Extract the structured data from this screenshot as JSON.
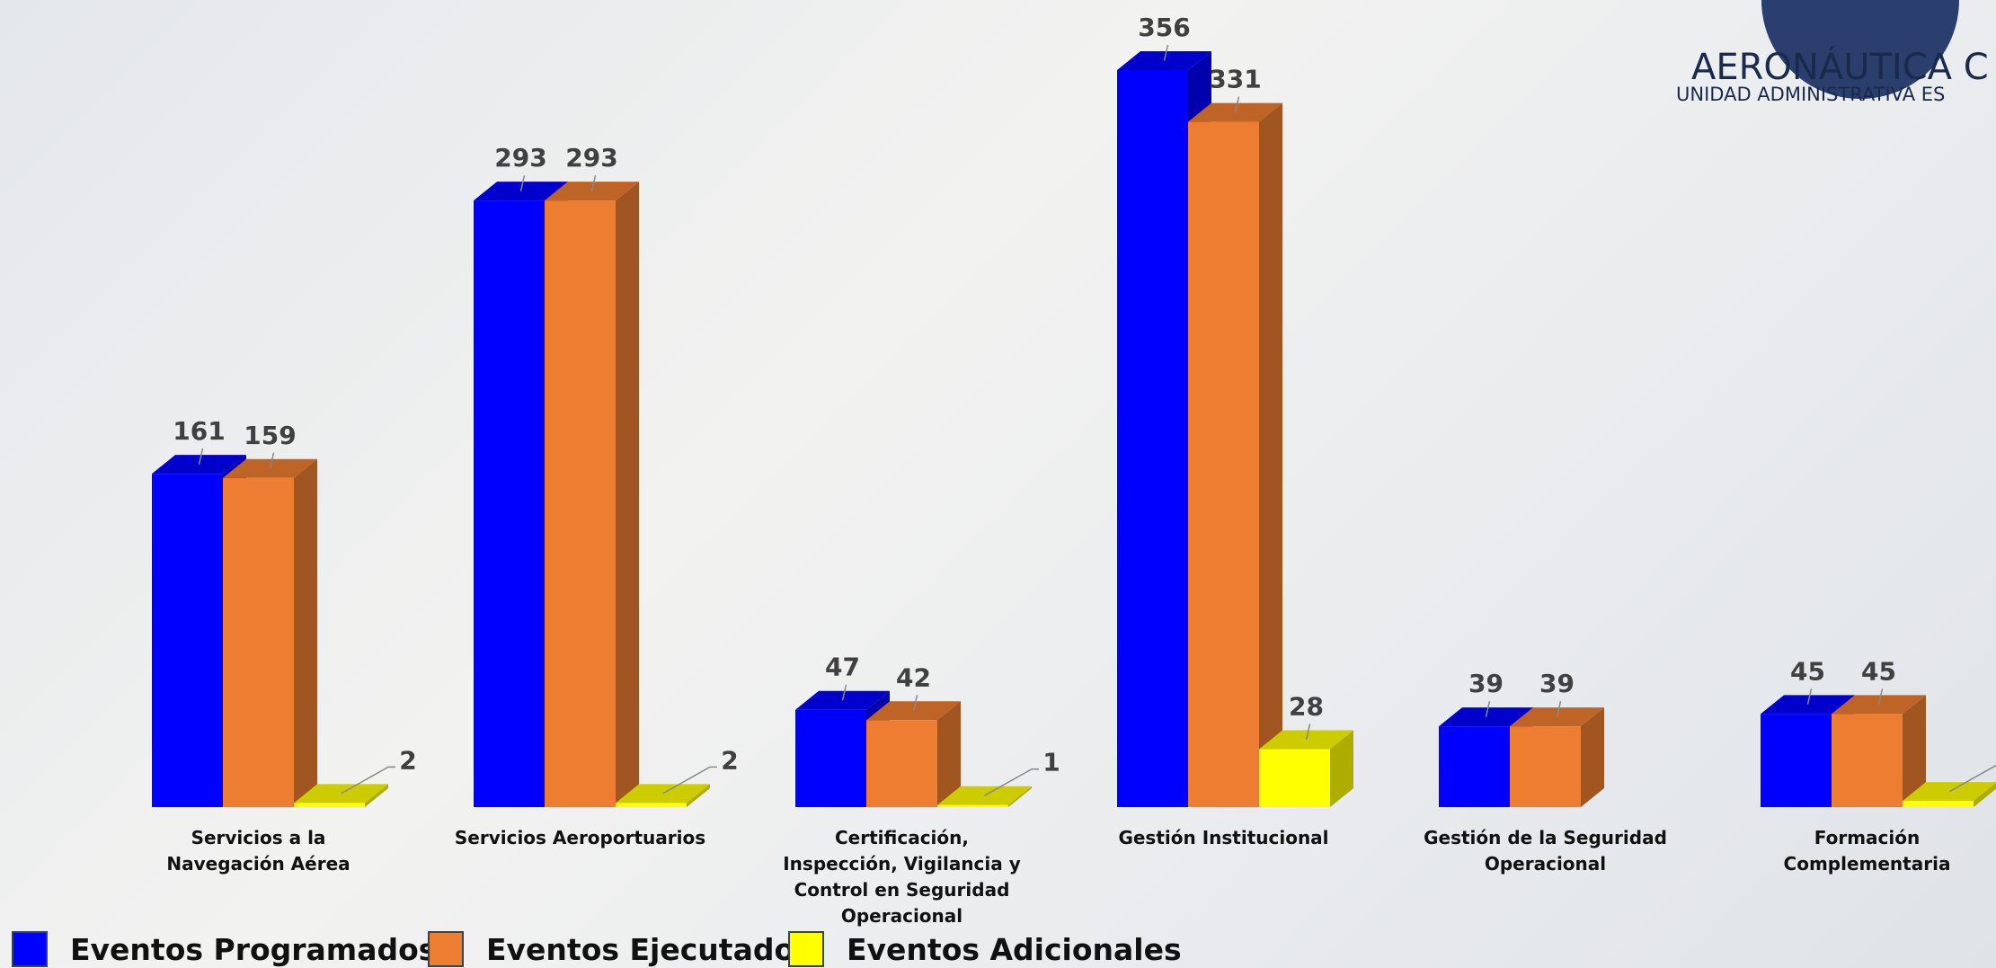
{
  "brand": {
    "name": "AERONÁUTICA C",
    "unit": "UNIDAD ADMINISTRATIVA ES"
  },
  "chart_data": {
    "type": "bar3d",
    "categories": [
      "Servicios a la Navegación Aérea",
      "Servicios Aeroportuarios",
      "Certificación, Inspección, Vigilancia y Control en Seguridad Operacional",
      "Gestión Institucional",
      "Gestión de la Seguridad Operacional",
      "Formación Complementaria"
    ],
    "series": [
      {
        "name": "Eventos Programados",
        "color": "#0000ff",
        "values": [
          161,
          293,
          47,
          356,
          39,
          45
        ]
      },
      {
        "name": "Eventos Ejecutados",
        "color": "#ed7d31",
        "values": [
          159,
          293,
          42,
          331,
          39,
          45
        ]
      },
      {
        "name": "Eventos Adicionales",
        "color": "#ffff00",
        "values": [
          2,
          2,
          1,
          28,
          null,
          3
        ]
      }
    ],
    "legend": "bottom"
  }
}
